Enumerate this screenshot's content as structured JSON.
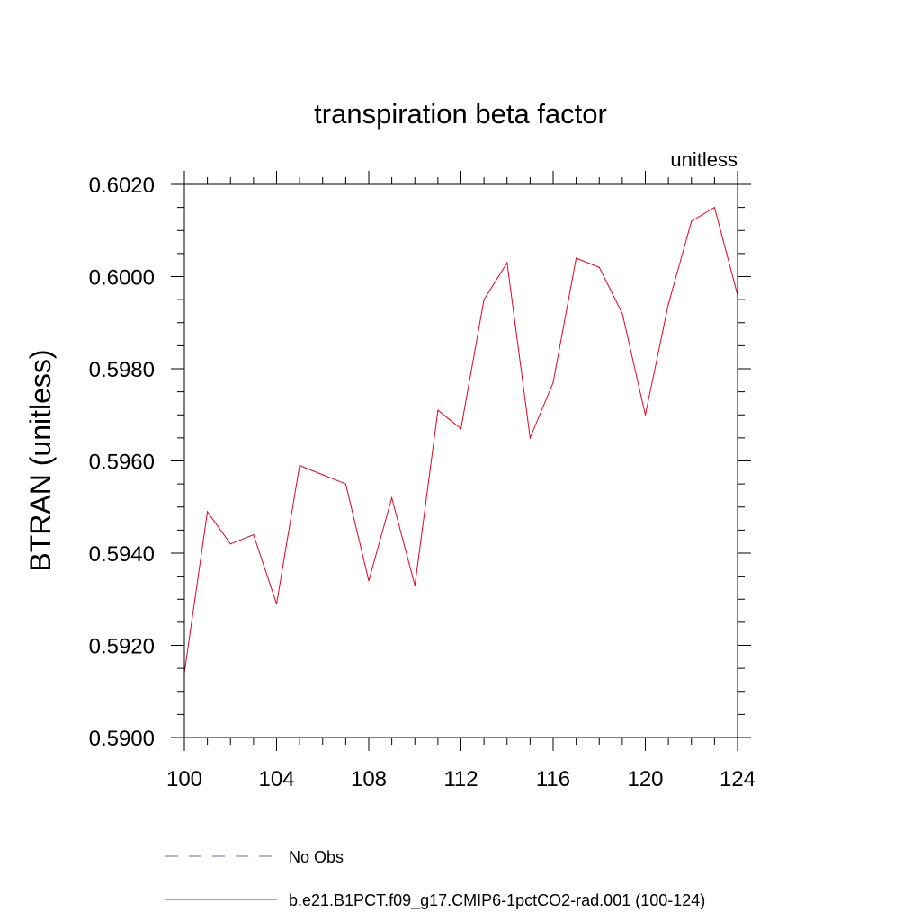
{
  "chart_data": {
    "type": "line",
    "title": "transpiration beta factor",
    "units_label": "unitless",
    "ylabel": "BTRAN  (unitless)",
    "xlabel": "",
    "xlim": [
      100,
      124
    ],
    "ylim": [
      0.59,
      0.602
    ],
    "xticks": [
      100,
      104,
      108,
      112,
      116,
      120,
      124
    ],
    "yticks": [
      "0.5900",
      "0.5920",
      "0.5940",
      "0.5960",
      "0.5980",
      "0.6000",
      "0.6020"
    ],
    "grid": false,
    "legend_placement": "bottom",
    "series": [
      {
        "name": "b.e21.B1PCT.f09_g17.CMIP6-1pctCO2-rad.001 (100-124)",
        "color": "#e8001c",
        "style": "solid",
        "x": [
          100,
          101,
          102,
          103,
          104,
          105,
          106,
          107,
          108,
          109,
          110,
          111,
          112,
          113,
          114,
          115,
          116,
          117,
          118,
          119,
          120,
          121,
          122,
          123,
          124
        ],
        "values": [
          0.5914,
          0.5949,
          0.5942,
          0.5944,
          0.5929,
          0.5959,
          0.5957,
          0.5955,
          0.5934,
          0.5952,
          0.5933,
          0.5971,
          0.5967,
          0.5995,
          0.6003,
          0.5965,
          0.5977,
          0.6004,
          0.6002,
          0.5992,
          0.597,
          0.5994,
          0.6012,
          0.6015,
          0.5996
        ]
      }
    ],
    "legend": [
      {
        "label": "No Obs",
        "color": "#6a6ab8",
        "style": "dashed"
      },
      {
        "label": "b.e21.B1PCT.f09_g17.CMIP6-1pctCO2-rad.001 (100-124)",
        "color": "#e8001c",
        "style": "solid"
      }
    ]
  }
}
